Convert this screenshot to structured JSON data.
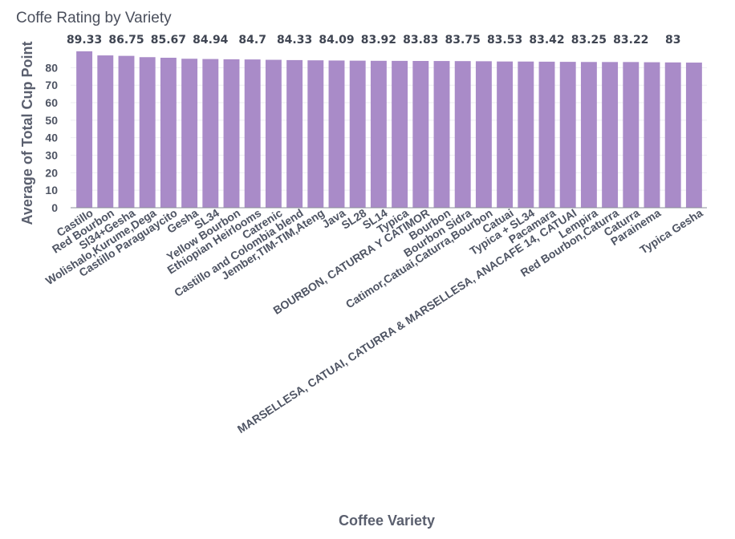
{
  "chart_data": {
    "type": "bar",
    "title": "Coffe Rating by Variety",
    "xlabel": "Coffee Variety",
    "ylabel": "Average of Total Cup Point",
    "ylim": [
      0,
      89.33
    ],
    "yticks": [
      0,
      10,
      20,
      30,
      40,
      50,
      60,
      70,
      80
    ],
    "bar_color": "#a98bc8",
    "categories": [
      "Castillo",
      "Red Bourbon",
      "Sl34+Gesha",
      "Wolishalo,Kurume,Dega",
      "Castillo Paraguaycito",
      "Gesha",
      "SL34",
      "Yellow Bourbon",
      "Ethiopian Heirlooms",
      "Catrenic",
      "Castillo and Colombia blend",
      "Jember,TIM-TIM,Ateng",
      "Java",
      "SL28",
      "SL14",
      "Typica",
      "BOURBON, CATURRA Y CATIMOR",
      "Bourbon",
      "Bourbon Sidra",
      "Catimor,Catuai,Caturra,Bourbon",
      "Catuai",
      "Typica + SL34",
      "Pacamara",
      "MARSELLESA, CATUAI, CATURRA & MARSELLESA, ANACAFE 14, CATUAI",
      "Lempira",
      "Red Bourbon,Caturra",
      "Caturra",
      "Parainema",
      "",
      "Typica Gesha"
    ],
    "values": [
      89.33,
      87.0,
      86.75,
      86.0,
      85.67,
      85.1,
      84.94,
      84.8,
      84.7,
      84.5,
      84.33,
      84.2,
      84.09,
      84.0,
      83.92,
      83.88,
      83.83,
      83.8,
      83.75,
      83.67,
      83.53,
      83.5,
      83.42,
      83.33,
      83.25,
      83.23,
      83.22,
      83.1,
      83.0,
      82.9
    ],
    "data_labels": [
      "89.33",
      "",
      "86.75",
      "",
      "85.67",
      "",
      "84.94",
      "",
      "84.7",
      "",
      "84.33",
      "",
      "84.09",
      "",
      "83.92",
      "",
      "83.83",
      "",
      "83.75",
      "",
      "83.53",
      "",
      "83.42",
      "",
      "83.25",
      "",
      "83.22",
      "",
      "83",
      ""
    ]
  }
}
